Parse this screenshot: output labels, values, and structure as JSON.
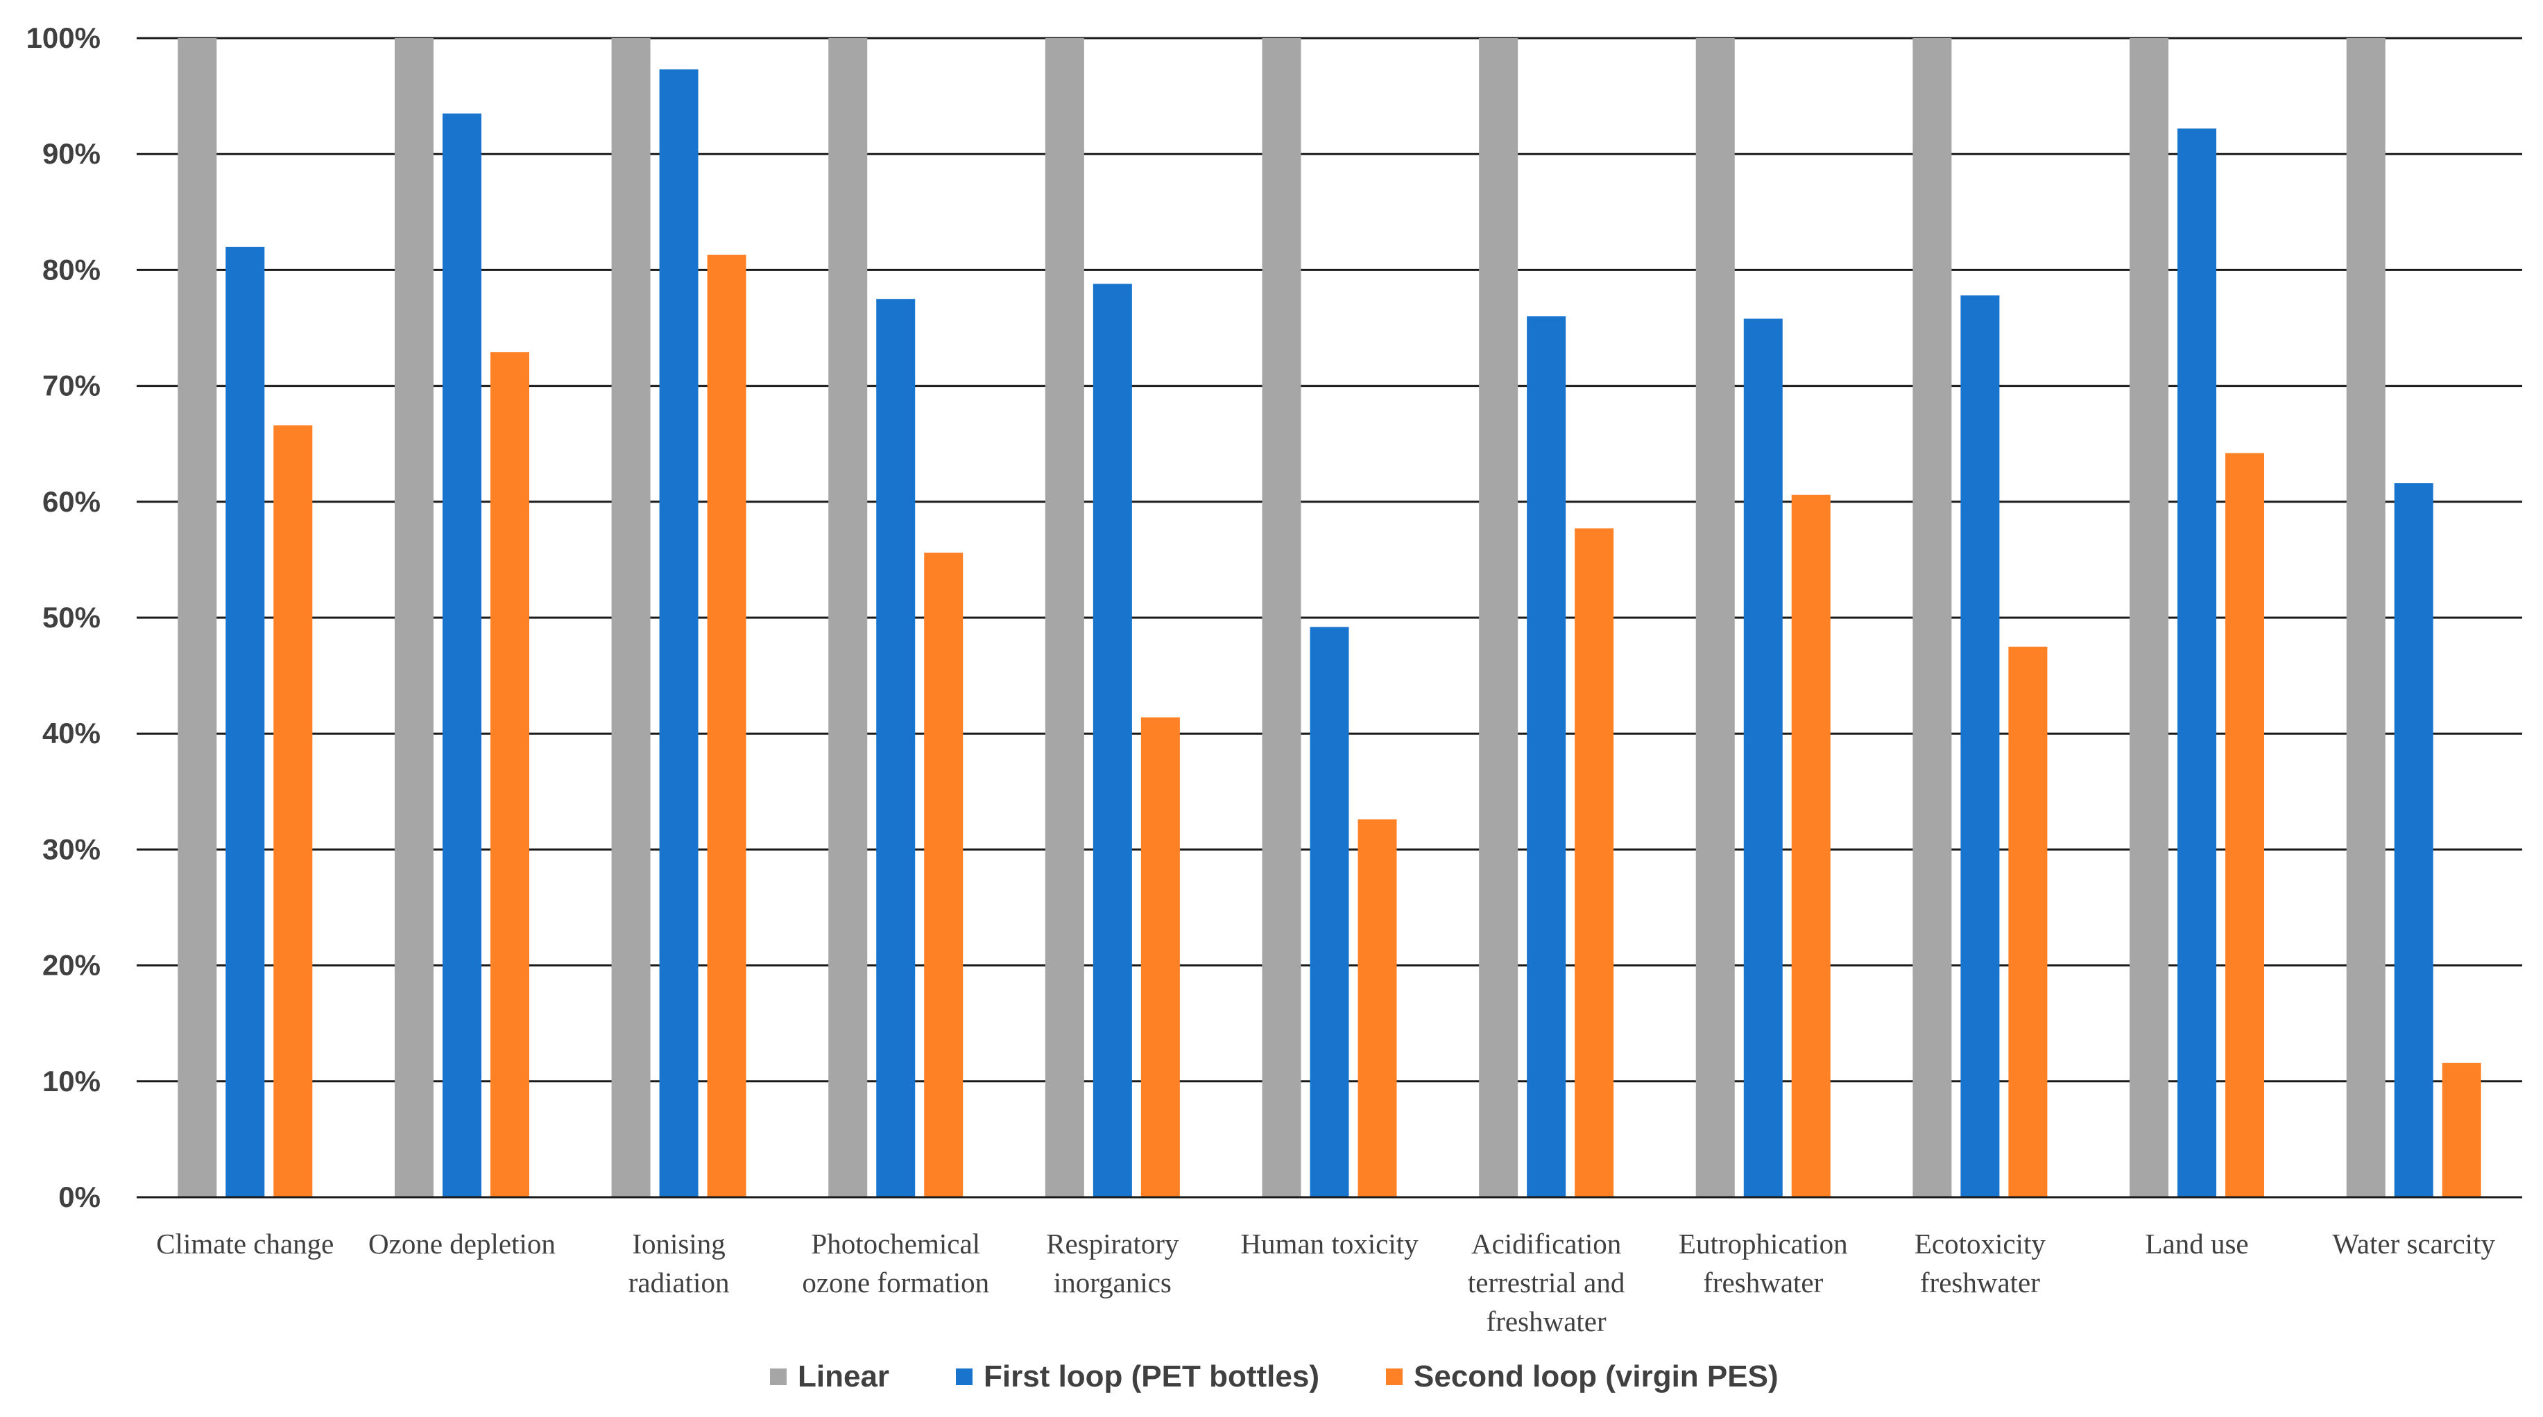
{
  "chart_data": {
    "type": "bar",
    "title": "",
    "xlabel": "",
    "ylabel": "",
    "ylim": [
      0,
      100
    ],
    "yticks": [
      "0%",
      "10%",
      "20%",
      "30%",
      "40%",
      "50%",
      "60%",
      "70%",
      "80%",
      "90%",
      "100%"
    ],
    "categories": [
      [
        "Climate change"
      ],
      [
        "Ozone depletion"
      ],
      [
        "Ionising",
        "radiation"
      ],
      [
        "Photochemical",
        "ozone formation"
      ],
      [
        "Respiratory",
        "inorganics"
      ],
      [
        "Human toxicity"
      ],
      [
        "Acidification",
        "terrestrial and",
        "freshwater"
      ],
      [
        "Eutrophication",
        "freshwater"
      ],
      [
        "Ecotoxicity",
        "freshwater"
      ],
      [
        "Land use"
      ],
      [
        "Water scarcity"
      ]
    ],
    "series": [
      {
        "name": "Linear",
        "color": "#a6a6a6",
        "values": [
          100,
          100,
          100,
          100,
          100,
          100,
          100,
          100,
          100,
          100,
          100
        ]
      },
      {
        "name": "First loop (PET bottles)",
        "color": "#1874cd",
        "values": [
          82,
          93.5,
          97.3,
          77.5,
          78.8,
          49.2,
          76,
          75.8,
          77.8,
          92.2,
          61.6
        ]
      },
      {
        "name": "Second loop (virgin PES)",
        "color": "#ff8126",
        "values": [
          66.6,
          72.9,
          81.3,
          55.6,
          41.4,
          32.6,
          57.7,
          60.6,
          47.5,
          64.2,
          11.6
        ]
      }
    ],
    "grid": true,
    "legend": "bottom"
  }
}
